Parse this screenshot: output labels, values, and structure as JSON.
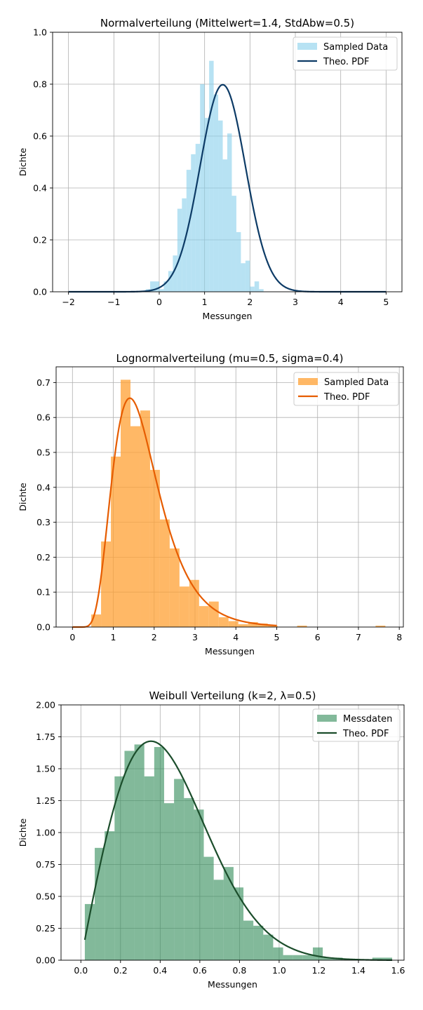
{
  "chart_data": [
    {
      "type": "bar",
      "title": "Normalverteilung (Mittelwert=1.4, StdAbw=0.5)",
      "xlabel": "Messungen",
      "ylabel": "Dichte",
      "xlim": [
        -2.35,
        5.35
      ],
      "ylim": [
        0,
        1.0
      ],
      "xticks": [
        "−2",
        "−1",
        "0",
        "1",
        "2",
        "3",
        "4",
        "5"
      ],
      "xtick_values": [
        -2,
        -1,
        0,
        1,
        2,
        3,
        4,
        5
      ],
      "yticks": [
        "0.0",
        "0.2",
        "0.4",
        "0.6",
        "0.8",
        "1.0"
      ],
      "ytick_values": [
        0,
        0.2,
        0.4,
        0.6,
        0.8,
        1.0
      ],
      "grid": true,
      "legend_position": "top-right",
      "colors": {
        "bars": "#87ceeb",
        "line": "#0d3b66"
      },
      "bar_opacity": 0.6,
      "series": [
        {
          "name": "Sampled Data",
          "kind": "histogram",
          "bin_edges": [
            -0.3,
            -0.2,
            0.0,
            0.1,
            0.2,
            0.3,
            0.4,
            0.5,
            0.6,
            0.7,
            0.8,
            0.9,
            1.0,
            1.1,
            1.2,
            1.3,
            1.4,
            1.5,
            1.6,
            1.7,
            1.8,
            1.9,
            2.0,
            2.1,
            2.2,
            2.3,
            2.4,
            2.5,
            2.6,
            2.7
          ],
          "values": [
            0.01,
            0.04,
            0.01,
            0.04,
            0.08,
            0.14,
            0.32,
            0.36,
            0.47,
            0.53,
            0.57,
            0.8,
            0.67,
            0.89,
            0.76,
            0.66,
            0.51,
            0.61,
            0.37,
            0.23,
            0.11,
            0.12,
            0.02,
            0.04,
            0.01,
            0.0,
            0.0,
            0.0,
            0.0
          ]
        },
        {
          "name": "Theo. PDF",
          "kind": "normal_pdf",
          "mean": 1.4,
          "sd": 0.5,
          "x_range": [
            -2,
            5
          ]
        }
      ]
    },
    {
      "type": "bar",
      "title": "Lognormalverteilung (mu=0.5, sigma=0.4)",
      "xlabel": "Messungen",
      "ylabel": "Dichte",
      "xlim": [
        -0.4,
        8.1
      ],
      "ylim": [
        0,
        0.745
      ],
      "xticks": [
        "0",
        "1",
        "2",
        "3",
        "4",
        "5",
        "6",
        "7",
        "8"
      ],
      "xtick_values": [
        0,
        1,
        2,
        3,
        4,
        5,
        6,
        7,
        8
      ],
      "yticks": [
        "0.0",
        "0.1",
        "0.2",
        "0.3",
        "0.4",
        "0.5",
        "0.6",
        "0.7"
      ],
      "ytick_values": [
        0,
        0.1,
        0.2,
        0.3,
        0.4,
        0.5,
        0.6,
        0.7
      ],
      "grid": true,
      "legend_position": "top-right",
      "colors": {
        "bars": "#ffa033",
        "line": "#e65c00"
      },
      "bar_opacity": 0.75,
      "series": [
        {
          "name": "Sampled Data",
          "kind": "histogram",
          "bin_edges": [
            0.46,
            0.7,
            0.94,
            1.18,
            1.42,
            1.66,
            1.9,
            2.14,
            2.38,
            2.62,
            2.86,
            3.1,
            3.34,
            3.58,
            3.82,
            4.06,
            4.3,
            4.54,
            4.78,
            5.02,
            5.26,
            5.5,
            5.74,
            5.98,
            6.22,
            6.46,
            6.7,
            6.94,
            7.18,
            7.42,
            7.66
          ],
          "values": [
            0.036,
            0.245,
            0.488,
            0.708,
            0.575,
            0.62,
            0.45,
            0.308,
            0.225,
            0.116,
            0.135,
            0.06,
            0.073,
            0.028,
            0.017,
            0.008,
            0.014,
            0.01,
            0.004,
            0,
            0,
            0.004,
            0,
            0,
            0,
            0,
            0,
            0,
            0,
            0.004
          ]
        },
        {
          "name": "Theo. PDF",
          "kind": "lognormal_pdf",
          "mu": 0.5,
          "sigma": 0.4,
          "x_range": [
            0,
            5
          ]
        }
      ]
    },
    {
      "type": "bar",
      "title": "Weibull Verteilung (k=2, λ=0.5)",
      "xlabel": "Messungen",
      "ylabel": "Dichte",
      "xlim": [
        -0.1,
        1.63
      ],
      "ylim": [
        0,
        2.0
      ],
      "xticks": [
        "0.0",
        "0.2",
        "0.4",
        "0.6",
        "0.8",
        "1.0",
        "1.2",
        "1.4",
        "1.6"
      ],
      "xtick_values": [
        0,
        0.2,
        0.4,
        0.6,
        0.8,
        1.0,
        1.2,
        1.4,
        1.6
      ],
      "yticks": [
        "0.00",
        "0.25",
        "0.50",
        "0.75",
        "1.00",
        "1.25",
        "1.50",
        "1.75",
        "2.00"
      ],
      "ytick_values": [
        0,
        0.25,
        0.5,
        0.75,
        1.0,
        1.25,
        1.5,
        1.75,
        2.0
      ],
      "grid": true,
      "legend_position": "top-right",
      "colors": {
        "bars": "#2e8b57",
        "line": "#1b4d2b"
      },
      "bar_opacity": 0.6,
      "series": [
        {
          "name": "Messdaten",
          "kind": "histogram",
          "bin_edges": [
            0.02,
            0.07,
            0.12,
            0.17,
            0.22,
            0.27,
            0.32,
            0.37,
            0.42,
            0.47,
            0.52,
            0.57,
            0.62,
            0.67,
            0.72,
            0.77,
            0.82,
            0.87,
            0.92,
            0.97,
            1.02,
            1.07,
            1.12,
            1.17,
            1.22,
            1.27,
            1.32,
            1.37,
            1.42,
            1.47,
            1.52,
            1.57
          ],
          "values": [
            0.44,
            0.88,
            1.01,
            1.44,
            1.64,
            1.69,
            1.44,
            1.67,
            1.23,
            1.42,
            1.27,
            1.18,
            0.81,
            0.63,
            0.73,
            0.57,
            0.31,
            0.27,
            0.2,
            0.1,
            0.04,
            0.04,
            0.04,
            0.1,
            0.02,
            0.02,
            0.0,
            0.0,
            0.0,
            0.02,
            0.02
          ]
        },
        {
          "name": "Theo. PDF",
          "kind": "weibull_pdf",
          "k": 2,
          "lambda": 0.5,
          "x_range": [
            0.02,
            1.57
          ]
        }
      ]
    }
  ]
}
